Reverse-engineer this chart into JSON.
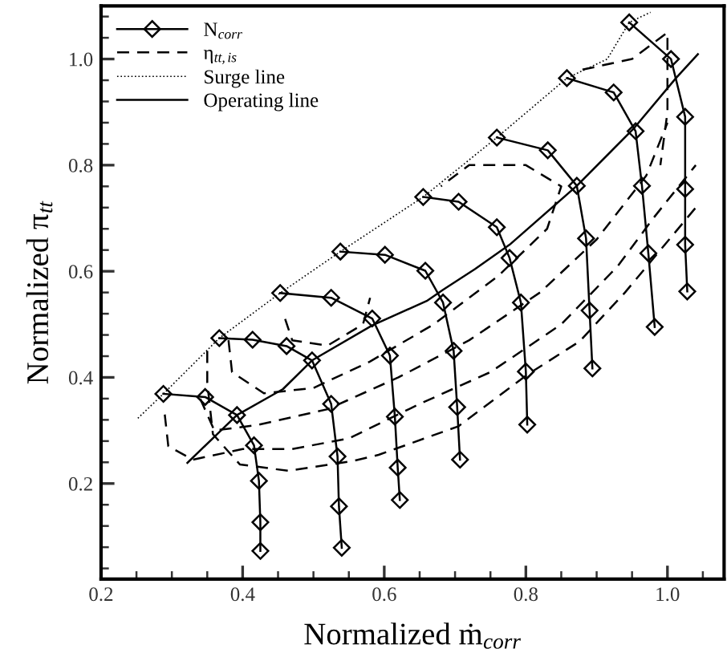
{
  "chart_data": {
    "type": "line",
    "xlabel": "Normalized ṁ$_{corr}$",
    "ylabel": "Normalized π$_{tt}$",
    "xlim": [
      0.2,
      1.08
    ],
    "ylim": [
      0.02,
      1.1
    ],
    "xticks": [
      0.2,
      0.4,
      0.6,
      0.8,
      {
        "value": 1,
        "label": "1.0"
      }
    ],
    "yticks": [
      0.2,
      0.4,
      0.6,
      0.8,
      {
        "value": 1,
        "label": "1.0"
      }
    ],
    "grid": false,
    "legend": "top left",
    "series": [
      {
        "name": "N$_{corr}$",
        "color": "#000000",
        "marker": "diamond",
        "line_style": "solid",
        "x": [
          0.288,
          0.347,
          0.392,
          0.416,
          0.423,
          0.425,
          0.425
        ],
        "values": [
          0.369,
          0.363,
          0.329,
          0.272,
          0.205,
          0.127,
          0.073
        ]
      },
      {
        "color": "#000000",
        "marker": "diamond",
        "line_style": "solid",
        "x": [
          0.367,
          0.414,
          0.462,
          0.498,
          0.525,
          0.534,
          0.536,
          0.54
        ],
        "values": [
          0.474,
          0.471,
          0.459,
          0.432,
          0.35,
          0.251,
          0.157,
          0.079
        ]
      },
      {
        "color": "#000000",
        "marker": "diamond",
        "line_style": "solid",
        "x": [
          0.453,
          0.525,
          0.583,
          0.608,
          0.615,
          0.619,
          0.622
        ],
        "values": [
          0.559,
          0.55,
          0.511,
          0.441,
          0.326,
          0.23,
          0.169
        ]
      },
      {
        "color": "#000000",
        "marker": "diamond",
        "line_style": "solid",
        "x": [
          0.538,
          0.601,
          0.658,
          0.683,
          0.698,
          0.703,
          0.707
        ],
        "values": [
          0.637,
          0.631,
          0.601,
          0.541,
          0.45,
          0.344,
          0.245
        ]
      },
      {
        "color": "#000000",
        "marker": "diamond",
        "line_style": "solid",
        "x": [
          0.655,
          0.705,
          0.759,
          0.777,
          0.793,
          0.8,
          0.802
        ],
        "values": [
          0.74,
          0.731,
          0.683,
          0.625,
          0.541,
          0.411,
          0.311
        ]
      },
      {
        "color": "#000000",
        "marker": "diamond",
        "line_style": "solid",
        "x": [
          0.759,
          0.831,
          0.872,
          0.885,
          0.89,
          0.894
        ],
        "values": [
          0.852,
          0.828,
          0.761,
          0.662,
          0.526,
          0.417
        ]
      },
      {
        "color": "#000000",
        "marker": "diamond",
        "line_style": "solid",
        "x": [
          0.858,
          0.924,
          0.955,
          0.964,
          0.973,
          0.982
        ],
        "values": [
          0.964,
          0.937,
          0.864,
          0.761,
          0.634,
          0.495
        ]
      },
      {
        "color": "#000000",
        "marker": "diamond",
        "line_style": "solid",
        "x": [
          0.946,
          1.005,
          1.025,
          1.025,
          1.025,
          1.028
        ],
        "values": [
          1.069,
          1.0,
          0.891,
          0.755,
          0.65,
          0.562
        ]
      },
      {
        "name": "η$_{tt,is}$",
        "color": "#000000",
        "marker": "none",
        "line_style": "dashed",
        "x": [
          0.35,
          0.35,
          0.358,
          0.396,
          0.464,
          0.554,
          0.592,
          0.705,
          0.802,
          0.876,
          0.94,
          0.99,
          1.04
        ],
        "values": [
          0.45,
          0.39,
          0.293,
          0.236,
          0.224,
          0.242,
          0.254,
          0.308,
          0.405,
          0.468,
          0.56,
          0.64,
          0.72
        ]
      },
      {
        "color": "#000000",
        "marker": "none",
        "line_style": "dashed",
        "x": [
          0.29,
          0.295,
          0.33,
          0.4,
          0.47,
          0.55,
          0.65,
          0.75,
          0.85,
          0.93,
          0.98,
          1.04
        ],
        "values": [
          0.33,
          0.27,
          0.245,
          0.265,
          0.265,
          0.285,
          0.35,
          0.41,
          0.5,
          0.61,
          0.7,
          0.8
        ]
      },
      {
        "color": "#000000",
        "marker": "none",
        "line_style": "dashed",
        "x": [
          0.34,
          0.36,
          0.42,
          0.52,
          0.62,
          0.72,
          0.82,
          0.9,
          0.97,
          1.0
        ],
        "values": [
          0.36,
          0.3,
          0.31,
          0.34,
          0.4,
          0.47,
          0.56,
          0.66,
          0.78,
          0.88
        ]
      },
      {
        "color": "#000000",
        "marker": "none",
        "line_style": "dashed",
        "x": [
          0.38,
          0.385,
          0.43,
          0.5,
          0.58,
          0.67,
          0.76,
          0.83,
          0.85,
          0.8,
          0.72,
          0.68
        ],
        "values": [
          0.47,
          0.41,
          0.37,
          0.38,
          0.43,
          0.5,
          0.59,
          0.68,
          0.76,
          0.8,
          0.8,
          0.76
        ]
      },
      {
        "color": "#000000",
        "marker": "none",
        "line_style": "dashed",
        "x": [
          0.46,
          0.47,
          0.52,
          0.57,
          0.58
        ],
        "values": [
          0.51,
          0.47,
          0.46,
          0.5,
          0.55
        ]
      },
      {
        "color": "#000000",
        "marker": "none",
        "line_style": "dashed",
        "x": [
          0.88,
          0.95,
          1.0,
          1.0,
          0.99
        ],
        "values": [
          0.98,
          1.0,
          1.05,
          0.9,
          0.8
        ]
      },
      {
        "name": "Surge line",
        "color": "#000000",
        "marker": "none",
        "line_style": "dotted",
        "x": [
          0.252,
          0.288,
          0.367,
          0.453,
          0.538,
          0.655,
          0.759,
          0.858,
          0.915,
          0.946,
          0.976
        ],
        "values": [
          0.323,
          0.369,
          0.474,
          0.559,
          0.637,
          0.74,
          0.852,
          0.964,
          1.0,
          1.069,
          1.088
        ]
      },
      {
        "name": "Operating line",
        "color": "#000000",
        "marker": "none",
        "line_style": "solid",
        "x": [
          0.322,
          0.392,
          0.457,
          0.498,
          0.583,
          0.66,
          0.683,
          0.728,
          0.777,
          0.872,
          0.953,
          1.012,
          1.043
        ],
        "values": [
          0.239,
          0.329,
          0.378,
          0.432,
          0.498,
          0.544,
          0.565,
          0.604,
          0.65,
          0.761,
          0.87,
          0.964,
          1.009
        ]
      }
    ]
  }
}
